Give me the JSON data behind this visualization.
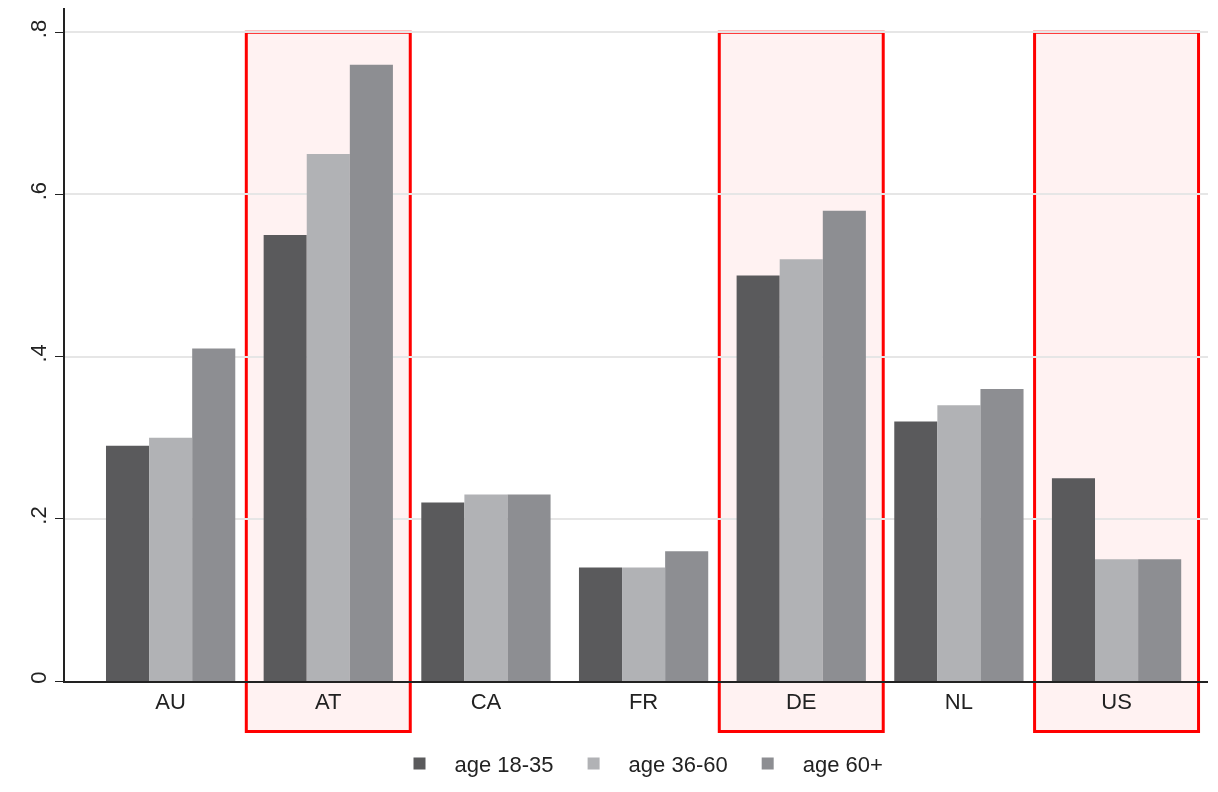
{
  "chart_data": {
    "type": "bar",
    "categories": [
      "AU",
      "AT",
      "CA",
      "FR",
      "DE",
      "NL",
      "US"
    ],
    "series": [
      {
        "name": "age 18-35",
        "color": "#5a5a5c",
        "values": [
          0.29,
          0.55,
          0.22,
          0.14,
          0.5,
          0.32,
          0.25
        ]
      },
      {
        "name": "age 36-60",
        "color": "#b1b2b5",
        "values": [
          0.3,
          0.65,
          0.23,
          0.14,
          0.52,
          0.34,
          0.15
        ]
      },
      {
        "name": "age 60+",
        "color": "#8d8e92",
        "values": [
          0.41,
          0.76,
          0.23,
          0.16,
          0.58,
          0.36,
          0.15
        ]
      }
    ],
    "ylim": [
      0,
      0.83
    ],
    "yticks": [
      0,
      {
        "value": 0.2,
        "label": ".2"
      },
      {
        "value": 0.4,
        "label": ".4"
      },
      {
        "value": 0.6,
        "label": ".6"
      },
      {
        "value": 0.8,
        "label": ".8"
      }
    ],
    "grid": "y",
    "legend": "bottom",
    "bands": [
      {
        "axis": "x",
        "from": "AT",
        "to": "AT",
        "color": "#ff0000"
      },
      {
        "axis": "x",
        "from": "DE",
        "to": "DE",
        "color": "#ff0000"
      },
      {
        "axis": "x",
        "from": "US",
        "to": "US",
        "color": "#ff0000"
      }
    ]
  }
}
